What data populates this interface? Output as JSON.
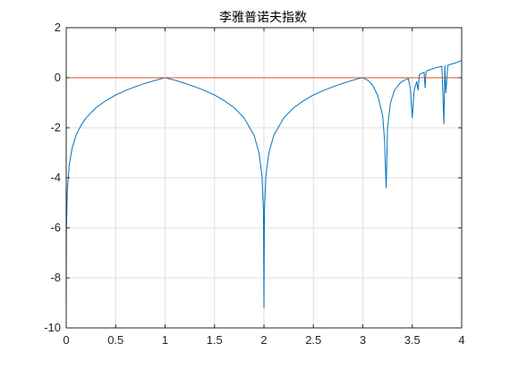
{
  "chart_data": {
    "type": "line",
    "title": "李雅普诺夫指数",
    "xlabel": "",
    "ylabel": "",
    "xlim": [
      0,
      4
    ],
    "ylim": [
      -10,
      2
    ],
    "x_ticks": [
      "0",
      "0.5",
      "1",
      "1.5",
      "2",
      "2.5",
      "3",
      "3.5",
      "4"
    ],
    "y_ticks": [
      "2",
      "0",
      "-2",
      "-4",
      "-6",
      "-8",
      "-10"
    ],
    "grid": true,
    "legend": "none",
    "series": [
      {
        "color": "#0072BD",
        "x": [
          0.0001,
          0.002,
          0.01,
          0.03,
          0.06,
          0.1,
          0.15,
          0.2,
          0.3,
          0.4,
          0.5,
          0.6,
          0.7,
          0.8,
          0.9,
          0.95,
          0.99,
          1.0,
          1.01,
          1.05,
          1.1,
          1.2,
          1.3,
          1.4,
          1.5,
          1.6,
          1.7,
          1.8,
          1.9,
          1.95,
          1.98,
          1.995,
          2.0,
          2.005,
          2.02,
          2.05,
          2.1,
          2.2,
          2.3,
          2.4,
          2.5,
          2.6,
          2.7,
          2.8,
          2.9,
          2.95,
          3.0,
          3.05,
          3.1,
          3.15,
          3.2,
          3.22,
          3.236,
          3.25,
          3.28,
          3.32,
          3.38,
          3.42,
          3.46,
          3.48,
          3.5,
          3.52,
          3.545,
          3.56,
          3.57,
          3.58,
          3.6,
          3.62,
          3.63,
          3.64,
          3.66,
          3.68,
          3.7,
          3.72,
          3.74,
          3.76,
          3.78,
          3.8,
          3.82,
          3.83,
          3.84,
          3.86,
          3.88,
          3.9,
          3.92,
          3.94,
          3.96,
          3.98,
          4.0
        ],
        "y": [
          -9.2,
          -6.2,
          -4.6,
          -3.5,
          -2.81,
          -2.3,
          -1.9,
          -1.61,
          -1.2,
          -0.92,
          -0.69,
          -0.51,
          -0.36,
          -0.22,
          -0.11,
          -0.05,
          -0.01,
          0.0,
          -0.01,
          -0.05,
          -0.1,
          -0.22,
          -0.36,
          -0.51,
          -0.69,
          -0.92,
          -1.2,
          -1.61,
          -2.3,
          -3.0,
          -3.9,
          -5.3,
          -9.2,
          -5.3,
          -3.9,
          -3.0,
          -2.3,
          -1.61,
          -1.2,
          -0.92,
          -0.69,
          -0.51,
          -0.36,
          -0.22,
          -0.1,
          -0.04,
          0.0,
          -0.1,
          -0.3,
          -0.7,
          -1.5,
          -2.5,
          -4.4,
          -2.0,
          -1.0,
          -0.5,
          -0.2,
          -0.1,
          -0.03,
          -0.4,
          -1.6,
          -0.5,
          -0.15,
          -0.5,
          0.1,
          0.15,
          0.18,
          0.22,
          -0.4,
          0.25,
          0.3,
          0.32,
          0.35,
          0.38,
          0.4,
          0.42,
          0.44,
          0.46,
          -1.85,
          0.48,
          -0.6,
          0.5,
          0.52,
          0.55,
          0.57,
          0.6,
          0.62,
          0.66,
          0.69
        ]
      },
      {
        "color": "#D95319",
        "x": [
          0,
          4
        ],
        "y": [
          0,
          0
        ]
      }
    ]
  }
}
